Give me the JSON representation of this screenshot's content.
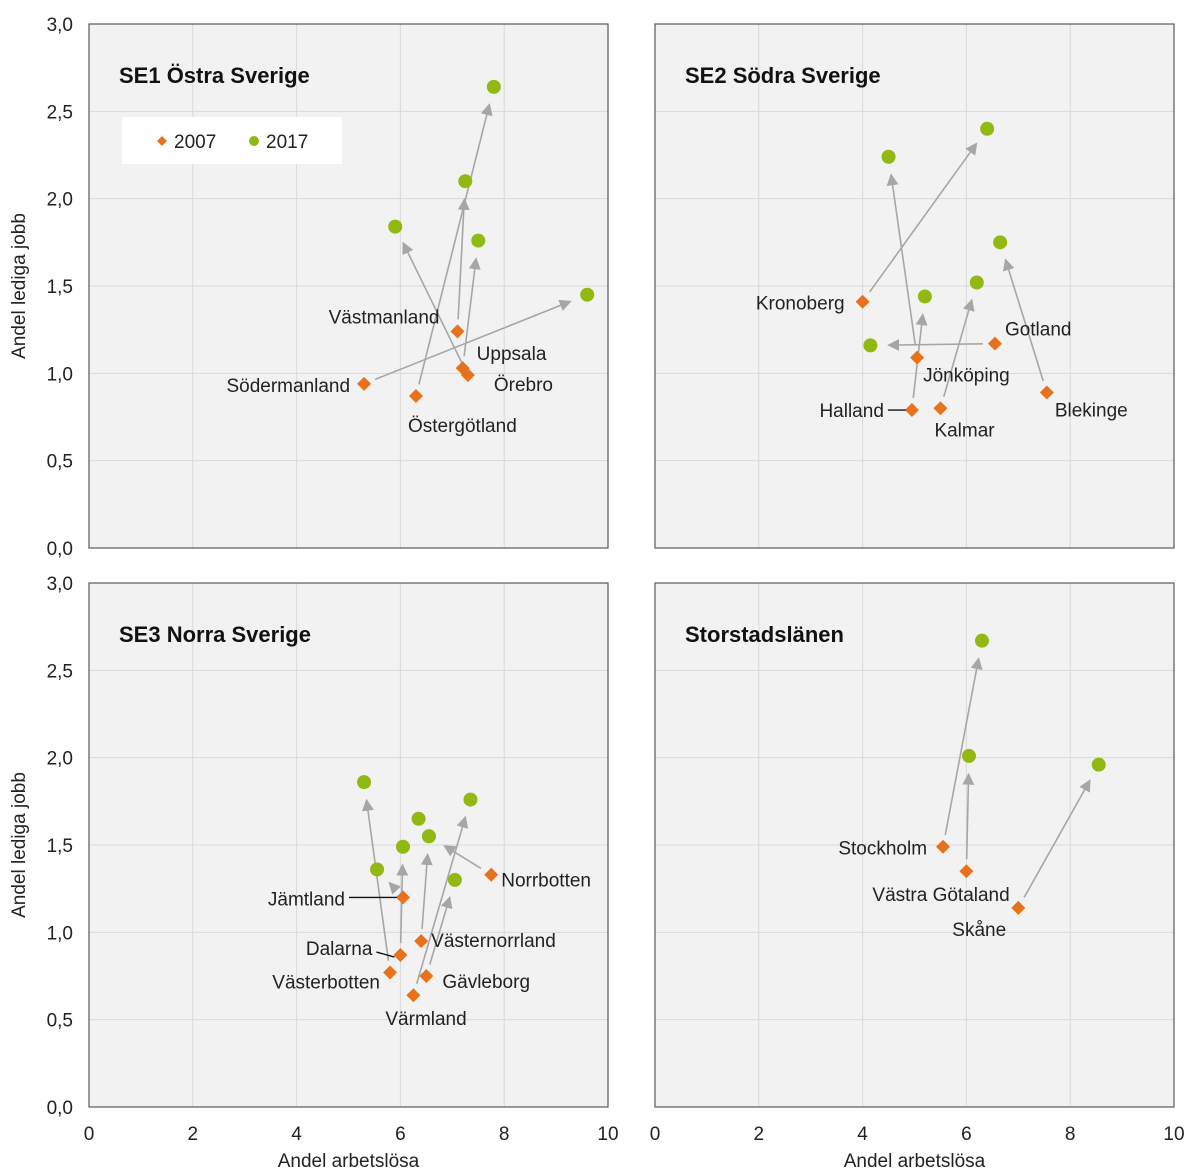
{
  "colors": {
    "plot_bg": "#f2f2f2",
    "plot_border": "#595959",
    "grid": "#d9d9d9",
    "arrow": "#a6a6a6",
    "series_2007": "#e8711c",
    "series_2017": "#92b814"
  },
  "chart_data": [
    {
      "type": "scatter",
      "title": "SE1 Östra Sverige",
      "xlabel": "Andel arbetslösa",
      "ylabel": "Andel lediga jobb",
      "xlim": [
        0,
        10
      ],
      "ylim": [
        0,
        3
      ],
      "x_ticks": [
        "0",
        "2",
        "4",
        "6",
        "8",
        "10"
      ],
      "y_ticks": [
        "0,0",
        "0,5",
        "1,0",
        "1,5",
        "2,0",
        "2,5",
        "3,0"
      ],
      "grid": true,
      "legend": {
        "placement": "top-left",
        "entries": [
          "2007",
          "2017"
        ]
      },
      "series": [
        {
          "name": "2007",
          "marker": "diamond"
        },
        {
          "name": "2017",
          "marker": "circle"
        }
      ],
      "points": [
        {
          "label": "Västmanland",
          "x2007": 7.1,
          "y2007": 1.24,
          "x2017": 7.25,
          "y2017": 2.1
        },
        {
          "label": "Uppsala",
          "x2007": 7.2,
          "y2007": 1.03,
          "x2017": 7.5,
          "y2017": 1.76
        },
        {
          "label": "Örebro",
          "x2007": 7.3,
          "y2007": 0.99,
          "x2017": 5.9,
          "y2017": 1.84
        },
        {
          "label": "Södermanland",
          "x2007": 5.3,
          "y2007": 0.94,
          "x2017": 9.6,
          "y2017": 1.45
        },
        {
          "label": "Östergötland",
          "x2007": 6.3,
          "y2007": 0.87,
          "x2017": 7.8,
          "y2017": 2.64
        }
      ]
    },
    {
      "type": "scatter",
      "title": "SE2 Södra Sverige",
      "xlabel": "",
      "ylabel": "",
      "xlim": [
        0,
        10
      ],
      "ylim": [
        0,
        3
      ],
      "grid": true,
      "series": [
        {
          "name": "2007",
          "marker": "diamond"
        },
        {
          "name": "2017",
          "marker": "circle"
        }
      ],
      "points": [
        {
          "label": "Kronoberg",
          "x2007": 4.0,
          "y2007": 1.41,
          "x2017": 6.4,
          "y2017": 2.4
        },
        {
          "label": "Gotland",
          "x2007": 6.55,
          "y2007": 1.17,
          "x2017": 4.15,
          "y2017": 1.16
        },
        {
          "label": "Jönköping",
          "x2007": 5.05,
          "y2007": 1.09,
          "x2017": 4.5,
          "y2017": 2.24
        },
        {
          "label": "Halland",
          "x2007": 4.95,
          "y2007": 0.79,
          "x2017": 5.2,
          "y2017": 1.44
        },
        {
          "label": "Kalmar",
          "x2007": 5.5,
          "y2007": 0.8,
          "x2017": 6.2,
          "y2017": 1.52
        },
        {
          "label": "Blekinge",
          "x2007": 7.55,
          "y2007": 0.89,
          "x2017": 6.65,
          "y2017": 1.75
        }
      ]
    },
    {
      "type": "scatter",
      "title": "SE3 Norra Sverige",
      "xlabel": "Andel arbetslösa",
      "ylabel": "Andel lediga jobb",
      "xlim": [
        0,
        10
      ],
      "ylim": [
        0,
        3
      ],
      "x_ticks": [
        "0",
        "2",
        "4",
        "6",
        "8",
        "10"
      ],
      "y_ticks": [
        "0,0",
        "0,5",
        "1,0",
        "1,5",
        "2,0",
        "2,5",
        "3,0"
      ],
      "grid": true,
      "series": [
        {
          "name": "2007",
          "marker": "diamond"
        },
        {
          "name": "2017",
          "marker": "circle"
        }
      ],
      "points": [
        {
          "label": "Norrbotten",
          "x2007": 7.75,
          "y2007": 1.33,
          "x2017": 6.55,
          "y2017": 1.55
        },
        {
          "label": "Jämtland",
          "x2007": 6.05,
          "y2007": 1.2,
          "x2017": 5.55,
          "y2017": 1.36
        },
        {
          "label": "Västernorrland",
          "x2007": 6.4,
          "y2007": 0.95,
          "x2017": 6.55,
          "y2017": 1.55
        },
        {
          "label": "Dalarna",
          "x2007": 6.0,
          "y2007": 0.87,
          "x2017": 6.05,
          "y2017": 1.49
        },
        {
          "label": "Västerbotten",
          "x2007": 5.8,
          "y2007": 0.77,
          "x2017": 5.3,
          "y2017": 1.86
        },
        {
          "label": "Gävleborg",
          "x2007": 6.5,
          "y2007": 0.75,
          "x2017": 7.05,
          "y2017": 1.3
        },
        {
          "label": "Värmland",
          "x2007": 6.25,
          "y2007": 0.64,
          "x2017": 7.35,
          "y2017": 1.76
        },
        {
          "label": "",
          "x2007": null,
          "y2007": null,
          "x2017": 6.35,
          "y2017": 1.65
        }
      ]
    },
    {
      "type": "scatter",
      "title": "Storstadslänen",
      "xlabel": "Andel arbetslösa",
      "ylabel": "",
      "xlim": [
        0,
        10
      ],
      "ylim": [
        0,
        3
      ],
      "x_ticks": [
        "0",
        "2",
        "4",
        "6",
        "8",
        "10"
      ],
      "grid": true,
      "series": [
        {
          "name": "2007",
          "marker": "diamond"
        },
        {
          "name": "2017",
          "marker": "circle"
        }
      ],
      "points": [
        {
          "label": "Stockholm",
          "x2007": 5.55,
          "y2007": 1.49,
          "x2017": 6.3,
          "y2017": 2.67
        },
        {
          "label": "Västra Götaland",
          "x2007": 6.0,
          "y2007": 1.35,
          "x2017": 6.05,
          "y2017": 2.01
        },
        {
          "label": "Skåne",
          "x2007": 7.0,
          "y2007": 1.14,
          "x2017": 8.55,
          "y2017": 1.96
        }
      ]
    }
  ]
}
